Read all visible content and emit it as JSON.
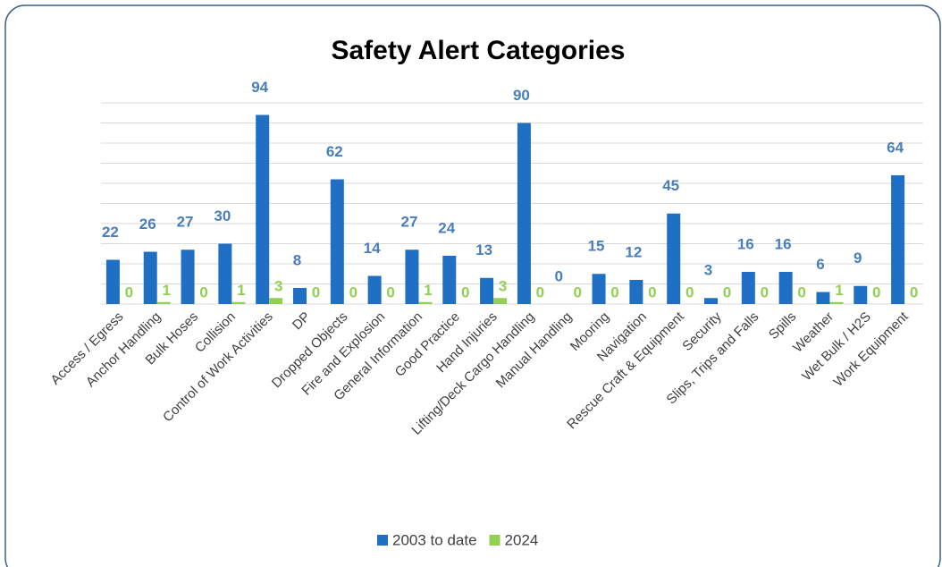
{
  "chart_data": {
    "type": "bar",
    "title": "Safety Alert Categories",
    "categories": [
      "Access / Egress",
      "Anchor Handling",
      "Bulk Hoses",
      "Collision",
      "Control of Work Activities",
      "DP",
      "Dropped Objects",
      "Fire and Explosion",
      "General Information",
      "Good Practice",
      "Hand Injuries",
      "Lifting/Deck Cargo Handling",
      "Manual Handling",
      "Mooring",
      "Navigation",
      "Rescue Craft & Equipment",
      "Security",
      "Slips, Trips and Falls",
      "Spills",
      "Weather",
      "Wet Bulk / H2S",
      "Work Equipment"
    ],
    "series": [
      {
        "name": "2003 to date",
        "color": "#1f6fc4",
        "values": [
          22,
          26,
          27,
          30,
          94,
          8,
          62,
          14,
          27,
          24,
          13,
          90,
          0,
          15,
          12,
          45,
          3,
          16,
          16,
          6,
          9,
          64
        ]
      },
      {
        "name": "2024",
        "color": "#92d050",
        "values": [
          0,
          1,
          0,
          1,
          3,
          0,
          0,
          0,
          1,
          0,
          3,
          0,
          0,
          0,
          0,
          0,
          0,
          0,
          0,
          1,
          0,
          0
        ]
      }
    ],
    "ylim": [
      0,
      100
    ],
    "yticks": [
      0,
      10,
      20,
      30,
      40,
      50,
      60,
      70,
      80,
      90,
      100
    ],
    "grid": true
  }
}
